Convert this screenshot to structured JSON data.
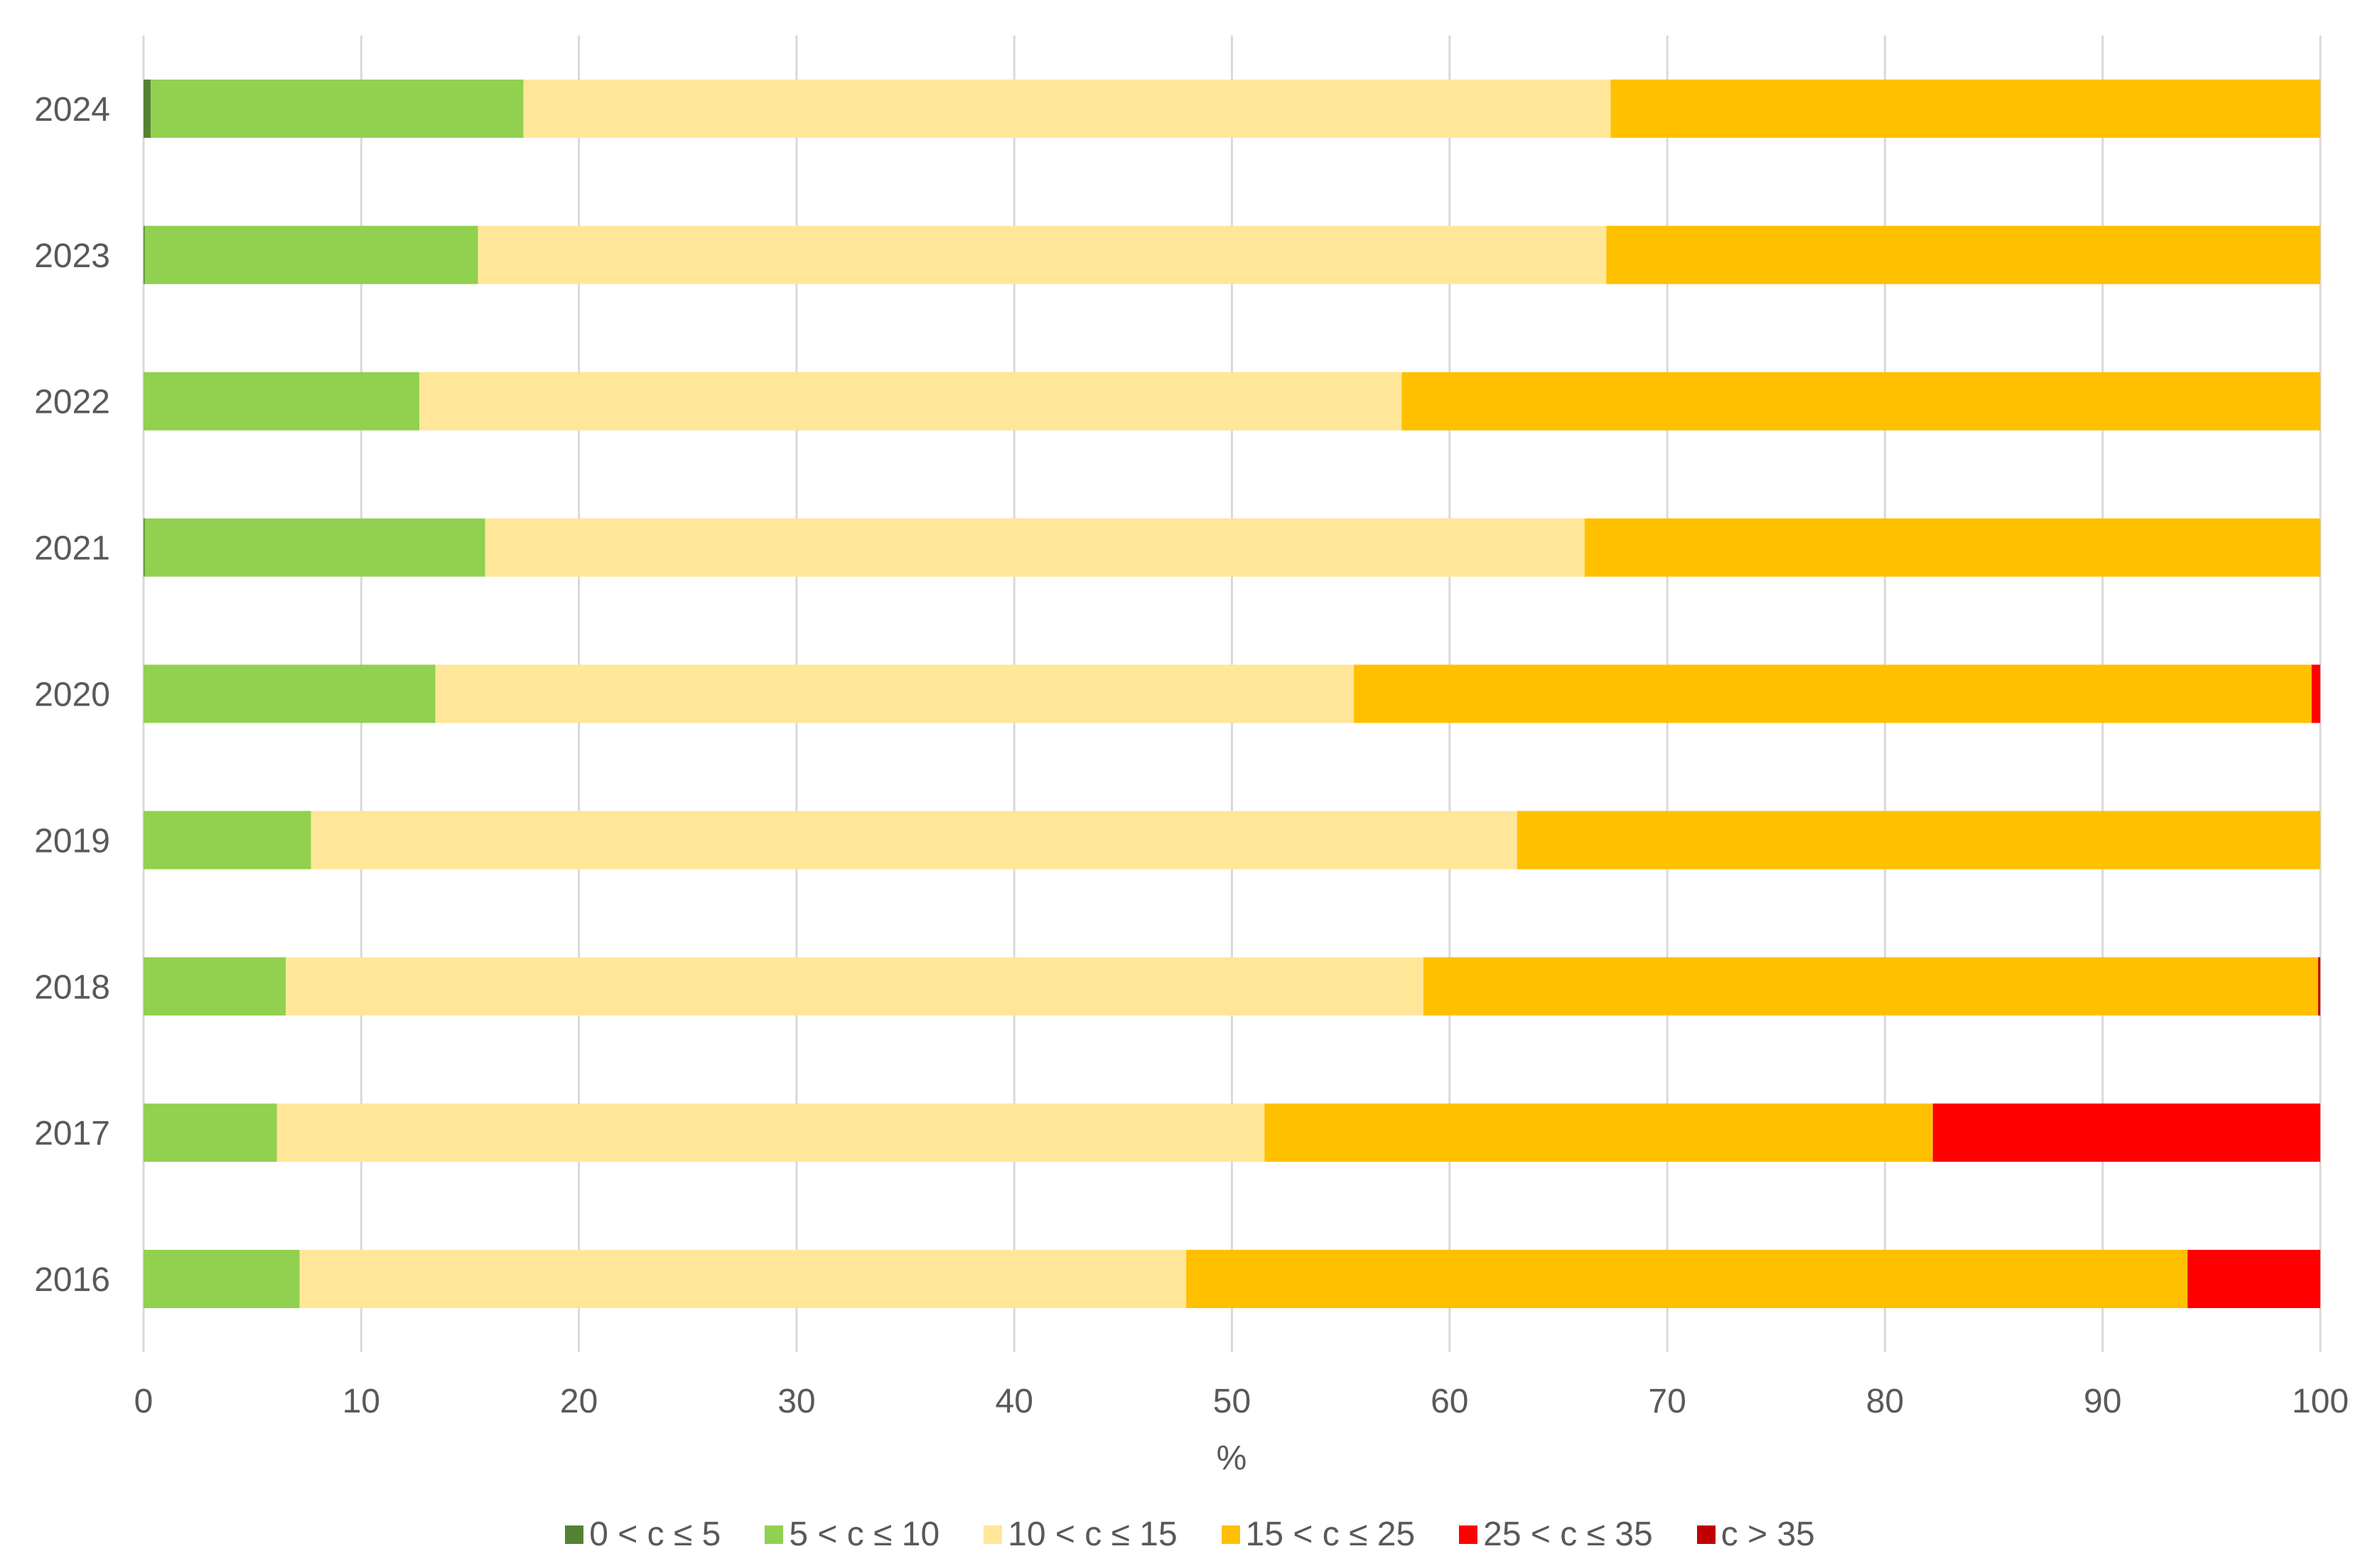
{
  "chart_data": {
    "type": "bar",
    "orientation": "horizontal",
    "stacked": true,
    "title": "",
    "xlabel": "%",
    "ylabel": "",
    "xlim": [
      0,
      100
    ],
    "xticks": [
      "0",
      "10",
      "20",
      "30",
      "40",
      "50",
      "60",
      "70",
      "80",
      "90",
      "100"
    ],
    "grid": "vertical",
    "legend_position": "bottom",
    "categories": [
      "2024",
      "2023",
      "2022",
      "2021",
      "2020",
      "2019",
      "2018",
      "2017",
      "2016"
    ],
    "series": [
      {
        "name": "0 < c ≤ 5",
        "color": "#548235",
        "values": [
          0.33,
          0.05,
          0,
          0.05,
          0,
          0,
          0,
          0,
          0
        ]
      },
      {
        "name": "5 < c ≤ 10",
        "color": "#92d050",
        "values": [
          17.12,
          15.31,
          12.67,
          15.64,
          13.41,
          7.69,
          6.53,
          6.13,
          7.17
        ]
      },
      {
        "name": "10 < c ≤ 15",
        "color": "#ffe699",
        "values": [
          49.95,
          51.84,
          45.13,
          50.51,
          42.19,
          55.41,
          52.27,
          45.37,
          40.73
        ]
      },
      {
        "name": "15 < c ≤ 25",
        "color": "#ffc000",
        "values": [
          32.6,
          32.8,
          42.2,
          33.8,
          44.0,
          36.9,
          41.1,
          30.7,
          46.0
        ]
      },
      {
        "name": "25 < c ≤ 35",
        "color": "#ff0000",
        "values": [
          0,
          0,
          0,
          0,
          0.4,
          0,
          0,
          17.8,
          6.1
        ]
      },
      {
        "name": "c > 35",
        "color": "#c00000",
        "values": [
          0,
          0,
          0,
          0,
          0,
          0,
          0.1,
          0,
          0
        ]
      }
    ]
  }
}
